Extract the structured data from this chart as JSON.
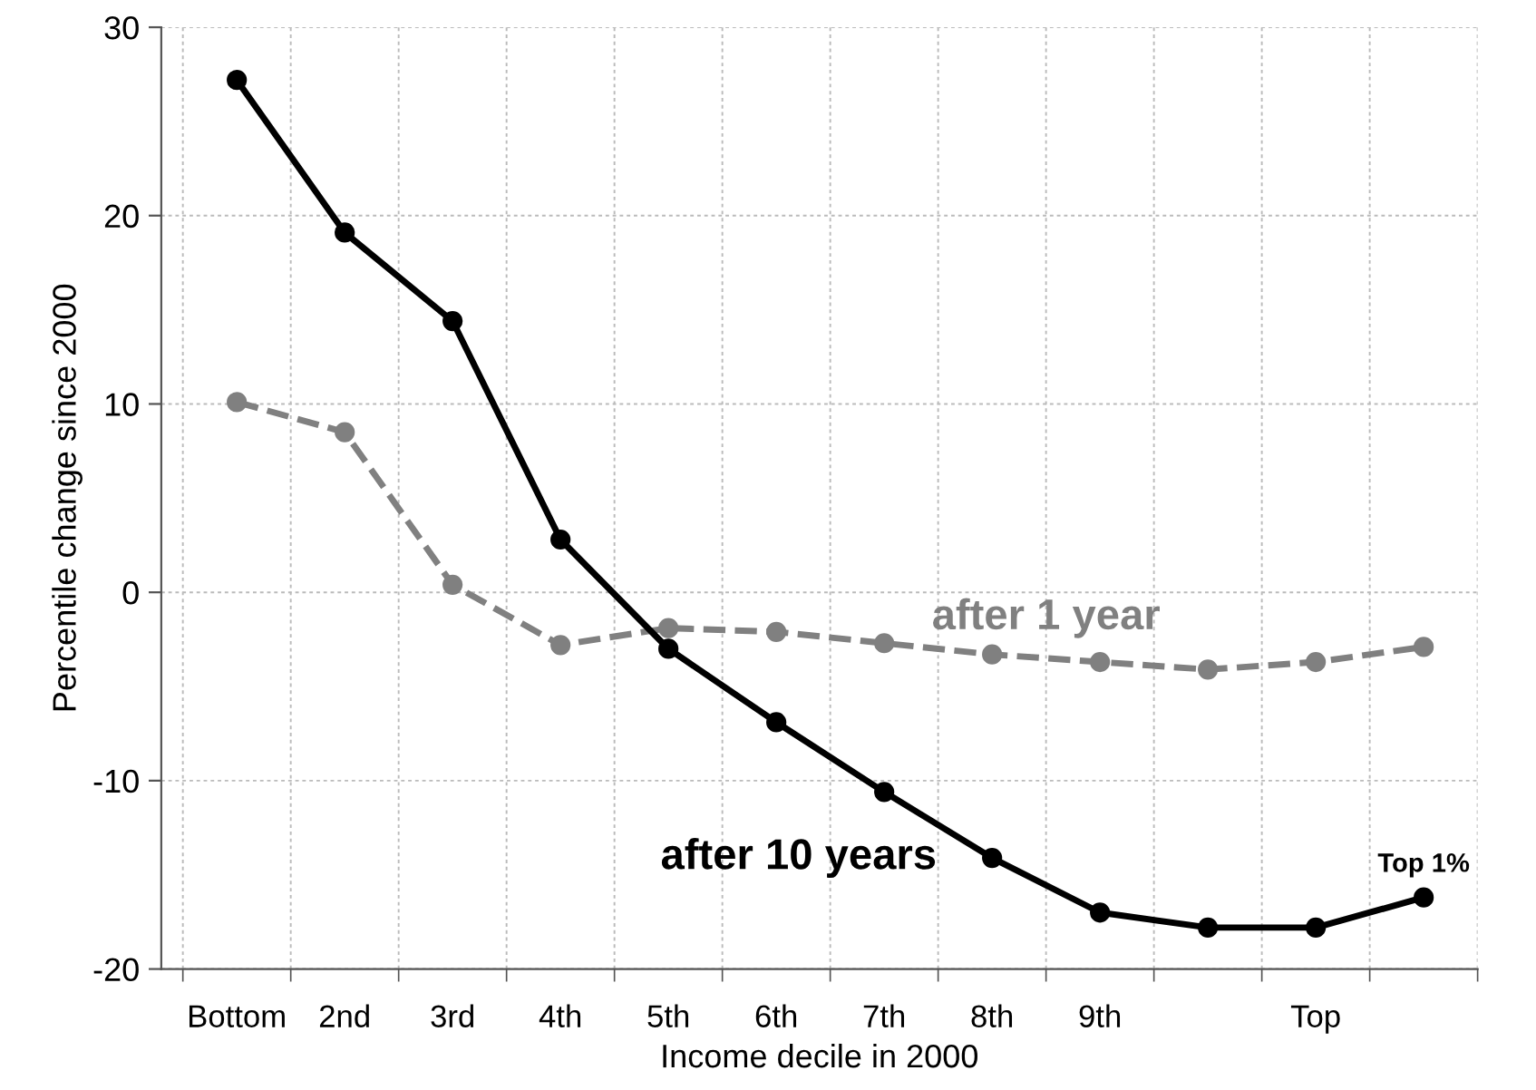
{
  "chart_data": {
    "type": "line",
    "xlabel": "Income decile in 2000",
    "ylabel": "Percentile change since 2000",
    "ylim": [
      -20,
      30
    ],
    "yticks": [
      -20,
      -10,
      0,
      10,
      20,
      30
    ],
    "categories": [
      "Bottom",
      "2nd",
      "3rd",
      "4th",
      "5th",
      "6th",
      "7th",
      "8th",
      "9th",
      null,
      "Top",
      null
    ],
    "grid": true,
    "marker": "circle",
    "legend": false,
    "series": [
      {
        "name": "after 1 year",
        "color": "#808080",
        "line_style": "dashed",
        "values": [
          10.1,
          8.5,
          0.4,
          -2.8,
          -1.9,
          -2.1,
          -2.7,
          -3.3,
          -3.7,
          -4.1,
          -3.7,
          -2.9
        ]
      },
      {
        "name": "after 10 years",
        "color": "#000000",
        "line_style": "solid",
        "values": [
          27.2,
          19.1,
          14.4,
          2.8,
          -3.0,
          -6.9,
          -10.6,
          -14.1,
          -17.0,
          -17.8,
          -17.8,
          -16.2
        ]
      }
    ],
    "annotations": [
      {
        "text": "Top 1%",
        "y": -16.2
      }
    ]
  }
}
